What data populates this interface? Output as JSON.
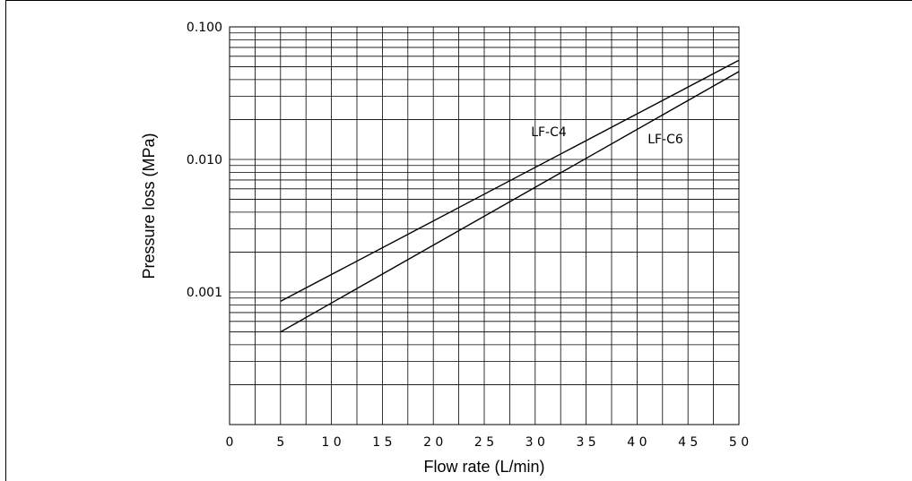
{
  "chart_data": {
    "type": "line",
    "xlabel": "Flow rate (L/min)",
    "ylabel": "Pressure loss (MPa)",
    "xlim": [
      0,
      50
    ],
    "ylim": [
      0.0001,
      0.1
    ],
    "y_scale": "log",
    "grid": true,
    "x_ticks": [
      0,
      5,
      10,
      15,
      20,
      25,
      30,
      35,
      40,
      45,
      50
    ],
    "x_tick_labels": [
      "0",
      "5",
      "1 0",
      "1 5",
      "2 0",
      "2 5",
      "3 0",
      "3 5",
      "4 0",
      "4 5",
      "5 0"
    ],
    "y_ticks": [
      0.001,
      0.01,
      0.1
    ],
    "y_tick_labels": [
      "0.001",
      "0.010",
      "0.100"
    ],
    "series": [
      {
        "name": "LF-C4",
        "x": [
          5,
          50
        ],
        "y": [
          0.00085,
          0.056
        ]
      },
      {
        "name": "LF-C6",
        "x": [
          5,
          50
        ],
        "y": [
          0.0005,
          0.046
        ]
      }
    ]
  }
}
